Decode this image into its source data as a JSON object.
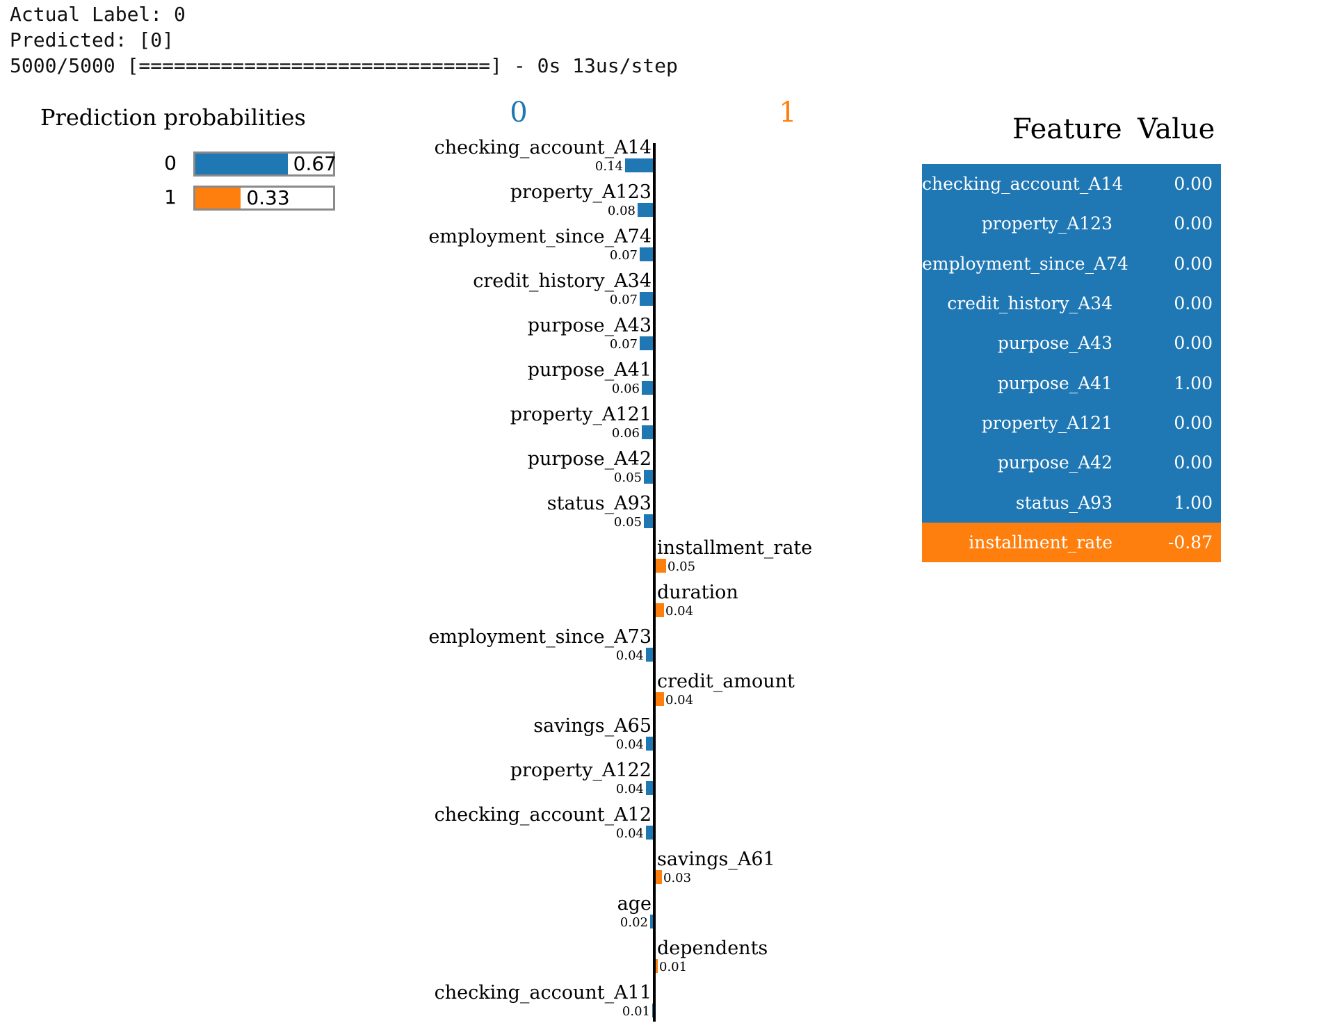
{
  "console": {
    "line1": "Actual Label: 0",
    "line2": "Predicted: [0]",
    "line3": "5000/5000 [==============================] - 0s 13us/step"
  },
  "colors": {
    "class0": "#1f77b4",
    "class1": "#ff7f0e",
    "axis": "#000000"
  },
  "prediction_probabilities": {
    "title": "Prediction probabilities",
    "items": [
      {
        "label": "0",
        "value": 0.67,
        "display": "0.67"
      },
      {
        "label": "1",
        "value": 0.33,
        "display": "0.33"
      }
    ]
  },
  "table": {
    "header_feature": "Feature",
    "header_value": "Value",
    "rows": [
      {
        "feature": "checking_account_A14",
        "value": "0.00",
        "class": 0
      },
      {
        "feature": "property_A123",
        "value": "0.00",
        "class": 0
      },
      {
        "feature": "employment_since_A74",
        "value": "0.00",
        "class": 0
      },
      {
        "feature": "credit_history_A34",
        "value": "0.00",
        "class": 0
      },
      {
        "feature": "purpose_A43",
        "value": "0.00",
        "class": 0
      },
      {
        "feature": "purpose_A41",
        "value": "1.00",
        "class": 0
      },
      {
        "feature": "property_A121",
        "value": "0.00",
        "class": 0
      },
      {
        "feature": "purpose_A42",
        "value": "0.00",
        "class": 0
      },
      {
        "feature": "status_A93",
        "value": "1.00",
        "class": 0
      },
      {
        "feature": "installment_rate",
        "value": "-0.87",
        "class": 1
      }
    ]
  },
  "chart_data": {
    "type": "bar",
    "class_labels": [
      "0",
      "1"
    ],
    "features": [
      {
        "name": "checking_account_A14",
        "weight": 0.14,
        "label": "0.14",
        "class": 0
      },
      {
        "name": "property_A123",
        "weight": 0.08,
        "label": "0.08",
        "class": 0
      },
      {
        "name": "employment_since_A74",
        "weight": 0.07,
        "label": "0.07",
        "class": 0
      },
      {
        "name": "credit_history_A34",
        "weight": 0.07,
        "label": "0.07",
        "class": 0
      },
      {
        "name": "purpose_A43",
        "weight": 0.07,
        "label": "0.07",
        "class": 0
      },
      {
        "name": "purpose_A41",
        "weight": 0.06,
        "label": "0.06",
        "class": 0
      },
      {
        "name": "property_A121",
        "weight": 0.06,
        "label": "0.06",
        "class": 0
      },
      {
        "name": "purpose_A42",
        "weight": 0.05,
        "label": "0.05",
        "class": 0
      },
      {
        "name": "status_A93",
        "weight": 0.05,
        "label": "0.05",
        "class": 0
      },
      {
        "name": "installment_rate",
        "weight": 0.05,
        "label": "0.05",
        "class": 1
      },
      {
        "name": "duration",
        "weight": 0.04,
        "label": "0.04",
        "class": 1
      },
      {
        "name": "employment_since_A73",
        "weight": 0.04,
        "label": "0.04",
        "class": 0
      },
      {
        "name": "credit_amount",
        "weight": 0.04,
        "label": "0.04",
        "class": 1
      },
      {
        "name": "savings_A65",
        "weight": 0.04,
        "label": "0.04",
        "class": 0
      },
      {
        "name": "property_A122",
        "weight": 0.04,
        "label": "0.04",
        "class": 0
      },
      {
        "name": "checking_account_A12",
        "weight": 0.04,
        "label": "0.04",
        "class": 0
      },
      {
        "name": "savings_A61",
        "weight": 0.03,
        "label": "0.03",
        "class": 1
      },
      {
        "name": "age",
        "weight": 0.02,
        "label": "0.02",
        "class": 0
      },
      {
        "name": "dependents",
        "weight": 0.01,
        "label": "0.01",
        "class": 1
      },
      {
        "name": "checking_account_A11",
        "weight": 0.01,
        "label": "0.01",
        "class": 0
      }
    ]
  }
}
